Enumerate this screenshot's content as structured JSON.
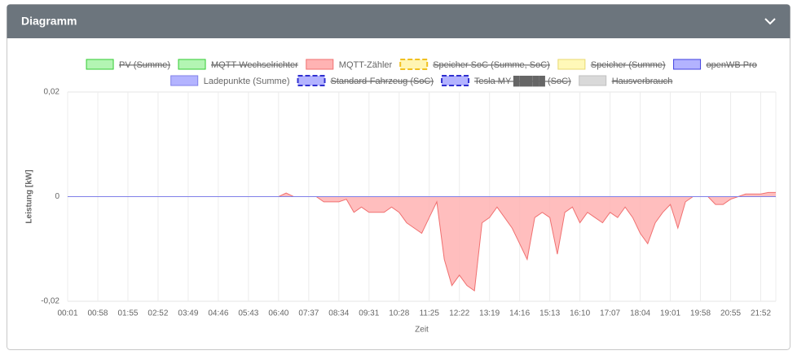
{
  "header": {
    "title": "Diagramm"
  },
  "chart_data": {
    "type": "line",
    "x_label": "Zeit",
    "y_label": "Leistung [kW]",
    "categories": [
      "00:01",
      null,
      null,
      null,
      "00:58",
      null,
      null,
      null,
      "01:55",
      null,
      null,
      null,
      "02:52",
      null,
      null,
      null,
      "03:49",
      null,
      null,
      null,
      "04:46",
      null,
      null,
      null,
      "05:43",
      null,
      null,
      null,
      "06:40",
      null,
      null,
      null,
      "07:37",
      null,
      null,
      null,
      "08:34",
      null,
      null,
      null,
      "09:31",
      null,
      null,
      null,
      "10:28",
      null,
      null,
      null,
      "11:25",
      null,
      null,
      null,
      "12:22",
      null,
      null,
      null,
      "13:19",
      null,
      null,
      null,
      "14:16",
      null,
      null,
      null,
      "15:13",
      null,
      null,
      null,
      "16:10",
      null,
      null,
      null,
      "17:07",
      null,
      null,
      null,
      "18:04",
      null,
      null,
      null,
      "19:01",
      null,
      null,
      null,
      "19:58",
      null,
      null,
      null,
      "20:55",
      null,
      null,
      null,
      "21:52",
      null,
      null
    ],
    "ylim": [
      -0.02,
      0.02
    ],
    "yticks": [
      {
        "value": -0.02,
        "label": "-0,02"
      },
      0,
      {
        "value": 0.02,
        "label": "0,02"
      }
    ],
    "grid": true,
    "series": [
      {
        "name": "PV (Summe)",
        "color": "#b3f5b3",
        "border": "#33cc33",
        "hidden": true,
        "dashed": false
      },
      {
        "name": "MQTT-Wechselrichter",
        "color": "#b3f5b3",
        "border": "#33cc33",
        "hidden": true,
        "dashed": false
      },
      {
        "name": "MQTT-Zähler",
        "color": "#ffb3b3",
        "border": "#f07070",
        "hidden": false,
        "dashed": false,
        "fill": true,
        "values": [
          0,
          0,
          0,
          0,
          0,
          0,
          0,
          0,
          0,
          0,
          0,
          0,
          0,
          0,
          0,
          0,
          0,
          0,
          0,
          0,
          0,
          0,
          0,
          0,
          0,
          0,
          0,
          0,
          0,
          0.0007,
          0,
          0,
          0,
          0,
          -0.001,
          -0.001,
          -0.001,
          -0.0005,
          -0.003,
          -0.002,
          -0.003,
          -0.003,
          -0.003,
          -0.002,
          -0.003,
          -0.005,
          -0.006,
          -0.007,
          -0.004,
          -0.001,
          -0.012,
          -0.017,
          -0.015,
          -0.017,
          -0.018,
          -0.005,
          -0.004,
          -0.002,
          -0.004,
          -0.006,
          -0.009,
          -0.012,
          -0.004,
          -0.003,
          -0.004,
          -0.011,
          -0.003,
          -0.002,
          -0.005,
          -0.003,
          -0.004,
          -0.005,
          -0.003,
          -0.004,
          -0.002,
          -0.004,
          -0.007,
          -0.009,
          -0.005,
          -0.003,
          -0.0015,
          -0.006,
          -0.001,
          0,
          0,
          0,
          -0.0015,
          -0.0015,
          -0.0005,
          0,
          0.0005,
          0.0005,
          0.0005,
          0.0008,
          0.0008
        ]
      },
      {
        "name": "Speicher SoC (Summe, SoC)",
        "color": "#fff5b3",
        "border": "#f0c020",
        "hidden": true,
        "dashed": true
      },
      {
        "name": "Speicher (Summe)",
        "color": "#fff8b8",
        "border": "#e8d870",
        "hidden": true,
        "dashed": false
      },
      {
        "name": "openWB Pro",
        "color": "#b3b3ff",
        "border": "#4040e0",
        "hidden": true,
        "dashed": false
      },
      {
        "name": "Ladepunkte (Summe)",
        "color": "#b3b3ff",
        "border": "#8080e8",
        "hidden": false,
        "dashed": false,
        "fill": false,
        "values": [
          0,
          0,
          0,
          0,
          0,
          0,
          0,
          0,
          0,
          0,
          0,
          0,
          0,
          0,
          0,
          0,
          0,
          0,
          0,
          0,
          0,
          0,
          0,
          0,
          0,
          0,
          0,
          0,
          0,
          0,
          0,
          0,
          0,
          0,
          0,
          0,
          0,
          0,
          0,
          0,
          0,
          0,
          0,
          0,
          0,
          0,
          0,
          0,
          0,
          0,
          0,
          0,
          0,
          0,
          0,
          0,
          0,
          0,
          0,
          0,
          0,
          0,
          0,
          0,
          0,
          0,
          0,
          0,
          0,
          0,
          0,
          0,
          0,
          0,
          0,
          0,
          0,
          0,
          0,
          0,
          0,
          0,
          0,
          0,
          0,
          0,
          0,
          0,
          0,
          0,
          0,
          0,
          0,
          0,
          0
        ]
      },
      {
        "name": "Standard-Fahrzeug (SoC)",
        "color": "#b3b3ff",
        "border": "#3030d0",
        "hidden": true,
        "dashed": true
      },
      {
        "name": "Tesla MY-█████ (SoC)",
        "color": "#b3b3ff",
        "border": "#3030d0",
        "hidden": true,
        "dashed": true
      },
      {
        "name": "Hausverbrauch",
        "color": "#d9d9d9",
        "border": "#c0c0c0",
        "hidden": true,
        "dashed": false
      }
    ]
  }
}
